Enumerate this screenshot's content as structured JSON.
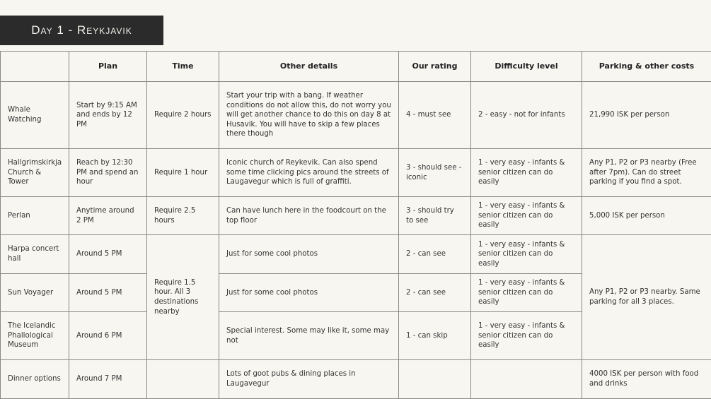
{
  "title": "Day 1 - Reykjavik",
  "headers": [
    "",
    "Plan",
    "Time",
    "Other details",
    "Our rating",
    "Difficulty level",
    "Parking & other costs"
  ],
  "rows": [
    {
      "place": "Whale Watching",
      "plan": "Start by 9:15 AM and ends by 12 PM",
      "time": "Require 2 hours",
      "details": "Start your trip with a bang. If weather conditions do not allow this, do not worry you will get another chance to do this on day 8 at Husavik. You will have to skip a few places there though",
      "rating": "4 - must see",
      "difficulty": "2 - easy - not for infants",
      "parking": "21,990 ISK per person"
    },
    {
      "place": "Hallgrimskirkja Church & Tower",
      "plan": "Reach by 12:30 PM  and spend an hour",
      "time": "Require 1 hour",
      "details": "Iconic church of Reykevik. Can also spend some time clicking pics around the streets of Laugavegur which is full of graffiti.",
      "rating": "3 - should see - iconic",
      "difficulty": "1 - very easy - infants & senior citizen can do easily",
      "parking": "Any P1, P2 or P3 nearby (Free after 7pm). Can do street parking if you find a spot."
    },
    {
      "place": "Perlan",
      "plan": "Anytime around 2 PM",
      "time": "Require 2.5 hours",
      "details": "Can have lunch here in the foodcourt on the top floor",
      "rating": "3 - should try to see",
      "difficulty": "1 - very easy - infants & senior citizen can do easily",
      "parking": "5,000 ISK per person"
    },
    {
      "place": "Harpa concert hall",
      "plan": "Around 5 PM",
      "time": "Require 1.5 hour. All 3 destinations nearby",
      "details": "Just for some cool photos",
      "rating": "2 - can see",
      "difficulty": "1 - very easy - infants & senior citizen can do easily",
      "parking": "Any P1, P2 or P3 nearby. Same parking for all 3 places."
    },
    {
      "place": "Sun Voyager",
      "plan": "Around 5 PM",
      "details": "Just for some cool photos",
      "rating": "2 - can see",
      "difficulty": "1 - very easy - infants & senior citizen can do easily"
    },
    {
      "place": "The Icelandic Phallological Museum",
      "plan": "Around 6 PM",
      "details": "Special interest. Some may like it, some may not",
      "rating": "1 - can skip",
      "difficulty": "1 - very easy - infants & senior citizen can do easily"
    },
    {
      "place": "Dinner options",
      "plan": "Around 7 PM",
      "time": "",
      "details": "Lots of goot pubs & dining places in Laugavegur",
      "rating": "",
      "difficulty": "",
      "parking": "4000 ISK per person with food and drinks"
    }
  ]
}
